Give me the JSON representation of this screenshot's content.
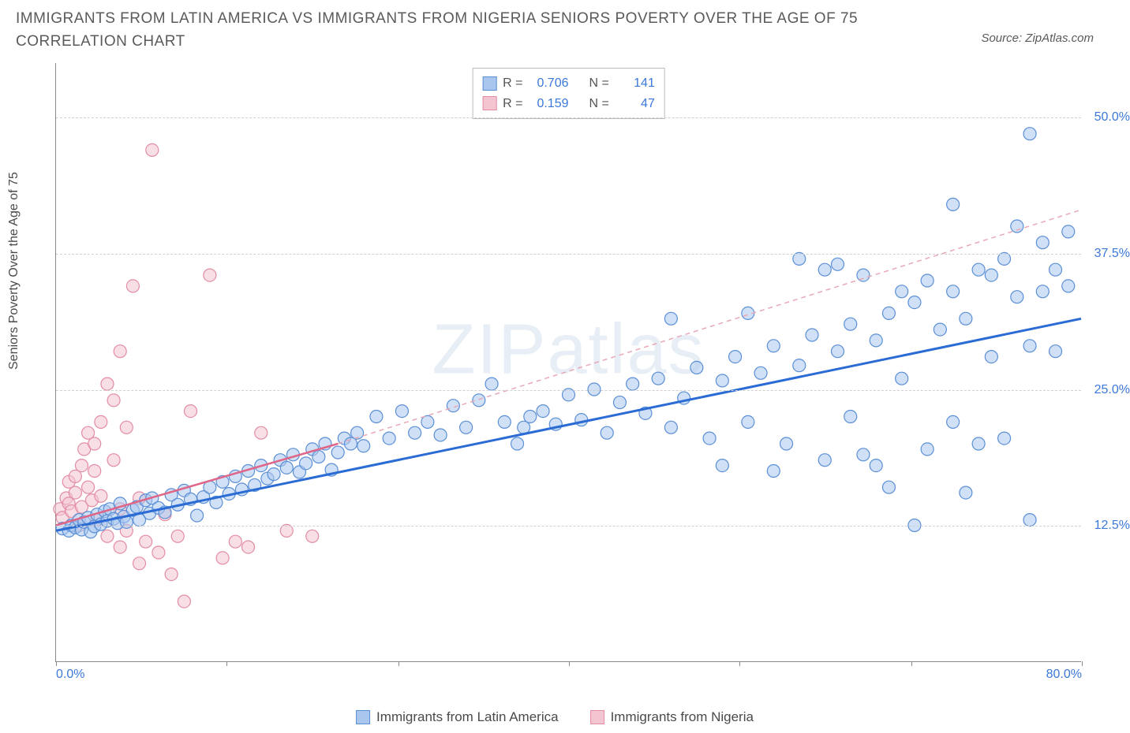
{
  "title": "IMMIGRANTS FROM LATIN AMERICA VS IMMIGRANTS FROM NIGERIA SENIORS POVERTY OVER THE AGE OF 75 CORRELATION CHART",
  "source": "Source: ZipAtlas.com",
  "watermark": "ZIPatlas",
  "y_axis_label": "Seniors Poverty Over the Age of 75",
  "chart": {
    "type": "scatter",
    "xlim": [
      0,
      80
    ],
    "ylim": [
      0,
      55
    ],
    "x_ticks": [
      0,
      13.3,
      26.7,
      40,
      53.3,
      66.7,
      80
    ],
    "x_tick_labels_shown": {
      "0": "0.0%",
      "80": "80.0%"
    },
    "y_ticks": [
      12.5,
      25.0,
      37.5,
      50.0
    ],
    "y_tick_labels": [
      "12.5%",
      "25.0%",
      "37.5%",
      "50.0%"
    ],
    "grid_color": "#d0d0d0",
    "background_color": "#ffffff",
    "axis_color": "#888888",
    "marker_radius": 8,
    "marker_opacity": 0.55,
    "marker_border_width": 1.2
  },
  "series": [
    {
      "name": "Immigrants from Latin America",
      "fill_color": "#a9c7ee",
      "stroke_color": "#5b8fd6",
      "line_color": "#2a6bd4",
      "line_width": 3,
      "line_dash": "none",
      "R": "0.706",
      "N": "141",
      "trend": {
        "x1": 0,
        "y1": 12.0,
        "x2": 80,
        "y2": 31.5
      },
      "dashed_ext": {
        "x1": 22,
        "y1": 20.0,
        "x2": 80,
        "y2": 41.5,
        "color": "#e8a8b5"
      },
      "points": [
        [
          0.5,
          12.2
        ],
        [
          1,
          12.0
        ],
        [
          1.2,
          12.5
        ],
        [
          1.5,
          12.3
        ],
        [
          1.8,
          13.0
        ],
        [
          2,
          12.1
        ],
        [
          2.2,
          12.8
        ],
        [
          2.5,
          13.2
        ],
        [
          2.7,
          11.9
        ],
        [
          3,
          12.4
        ],
        [
          3.2,
          13.5
        ],
        [
          3.5,
          12.6
        ],
        [
          3.8,
          13.8
        ],
        [
          4,
          12.9
        ],
        [
          4.2,
          14.0
        ],
        [
          4.5,
          13.1
        ],
        [
          4.8,
          12.7
        ],
        [
          5,
          14.5
        ],
        [
          5.3,
          13.3
        ],
        [
          5.5,
          12.8
        ],
        [
          6,
          13.9
        ],
        [
          6.3,
          14.2
        ],
        [
          6.5,
          13.0
        ],
        [
          7,
          14.8
        ],
        [
          7.3,
          13.6
        ],
        [
          7.5,
          15.0
        ],
        [
          8,
          14.1
        ],
        [
          8.5,
          13.7
        ],
        [
          9,
          15.3
        ],
        [
          9.5,
          14.4
        ],
        [
          10,
          15.7
        ],
        [
          10.5,
          14.9
        ],
        [
          11,
          13.4
        ],
        [
          11.5,
          15.1
        ],
        [
          12,
          16.0
        ],
        [
          12.5,
          14.6
        ],
        [
          13,
          16.5
        ],
        [
          13.5,
          15.4
        ],
        [
          14,
          17.0
        ],
        [
          14.5,
          15.8
        ],
        [
          15,
          17.5
        ],
        [
          15.5,
          16.2
        ],
        [
          16,
          18.0
        ],
        [
          16.5,
          16.8
        ],
        [
          17,
          17.2
        ],
        [
          17.5,
          18.5
        ],
        [
          18,
          17.8
        ],
        [
          18.5,
          19.0
        ],
        [
          19,
          17.4
        ],
        [
          19.5,
          18.2
        ],
        [
          20,
          19.5
        ],
        [
          20.5,
          18.8
        ],
        [
          21,
          20.0
        ],
        [
          21.5,
          17.6
        ],
        [
          22,
          19.2
        ],
        [
          22.5,
          20.5
        ],
        [
          23,
          20.0
        ],
        [
          23.5,
          21.0
        ],
        [
          24,
          19.8
        ],
        [
          25,
          22.5
        ],
        [
          26,
          20.5
        ],
        [
          27,
          23.0
        ],
        [
          28,
          21.0
        ],
        [
          29,
          22.0
        ],
        [
          30,
          20.8
        ],
        [
          31,
          23.5
        ],
        [
          32,
          21.5
        ],
        [
          33,
          24.0
        ],
        [
          34,
          25.5
        ],
        [
          35,
          22.0
        ],
        [
          36,
          20.0
        ],
        [
          36.5,
          21.5
        ],
        [
          37,
          22.5
        ],
        [
          38,
          23.0
        ],
        [
          39,
          21.8
        ],
        [
          40,
          24.5
        ],
        [
          41,
          22.2
        ],
        [
          42,
          25.0
        ],
        [
          43,
          21.0
        ],
        [
          44,
          23.8
        ],
        [
          45,
          25.5
        ],
        [
          46,
          22.8
        ],
        [
          47,
          26.0
        ],
        [
          48,
          21.5
        ],
        [
          48,
          31.5
        ],
        [
          49,
          24.2
        ],
        [
          50,
          27.0
        ],
        [
          51,
          20.5
        ],
        [
          52,
          25.8
        ],
        [
          53,
          28.0
        ],
        [
          54,
          22.0
        ],
        [
          54,
          32.0
        ],
        [
          55,
          26.5
        ],
        [
          56,
          29.0
        ],
        [
          57,
          20.0
        ],
        [
          58,
          27.2
        ],
        [
          58,
          37.0
        ],
        [
          59,
          30.0
        ],
        [
          60,
          18.5
        ],
        [
          60,
          36.0
        ],
        [
          61,
          28.5
        ],
        [
          61,
          36.5
        ],
        [
          62,
          31.0
        ],
        [
          63,
          19.0
        ],
        [
          63,
          35.5
        ],
        [
          64,
          29.5
        ],
        [
          65,
          32.0
        ],
        [
          65,
          16.0
        ],
        [
          66,
          26.0
        ],
        [
          67,
          33.0
        ],
        [
          67,
          12.5
        ],
        [
          68,
          19.5
        ],
        [
          68,
          35.0
        ],
        [
          69,
          30.5
        ],
        [
          70,
          34.0
        ],
        [
          70,
          42.0
        ],
        [
          71,
          15.5
        ],
        [
          71,
          31.5
        ],
        [
          72,
          36.0
        ],
        [
          73,
          28.0
        ],
        [
          73,
          35.5
        ],
        [
          74,
          37.0
        ],
        [
          74,
          20.5
        ],
        [
          75,
          33.5
        ],
        [
          75,
          40.0
        ],
        [
          76,
          29.0
        ],
        [
          76,
          48.5
        ],
        [
          77,
          38.5
        ],
        [
          77,
          34.0
        ],
        [
          78,
          28.5
        ],
        [
          78,
          36.0
        ],
        [
          79,
          34.5
        ],
        [
          79,
          39.5
        ],
        [
          76,
          13.0
        ],
        [
          72,
          20.0
        ],
        [
          70,
          22.0
        ],
        [
          66,
          34.0
        ],
        [
          64,
          18.0
        ],
        [
          62,
          22.5
        ],
        [
          56,
          17.5
        ],
        [
          52,
          18.0
        ]
      ]
    },
    {
      "name": "Immigrants from Nigeria",
      "fill_color": "#f3c5d1",
      "stroke_color": "#e38ca3",
      "line_color": "#e06688",
      "line_width": 2.5,
      "line_dash": "none",
      "R": "0.159",
      "N": "47",
      "trend": {
        "x1": 0,
        "y1": 12.5,
        "x2": 22,
        "y2": 20.0
      },
      "points": [
        [
          0.3,
          14.0
        ],
        [
          0.5,
          13.2
        ],
        [
          0.8,
          15.0
        ],
        [
          1,
          14.5
        ],
        [
          1,
          16.5
        ],
        [
          1.2,
          13.8
        ],
        [
          1.5,
          17.0
        ],
        [
          1.5,
          15.5
        ],
        [
          1.8,
          12.5
        ],
        [
          2,
          18.0
        ],
        [
          2,
          14.2
        ],
        [
          2.2,
          19.5
        ],
        [
          2.5,
          16.0
        ],
        [
          2.5,
          21.0
        ],
        [
          2.8,
          14.8
        ],
        [
          3,
          20.0
        ],
        [
          3,
          17.5
        ],
        [
          3.2,
          13.0
        ],
        [
          3.5,
          22.0
        ],
        [
          3.5,
          15.2
        ],
        [
          4,
          25.5
        ],
        [
          4,
          11.5
        ],
        [
          4.5,
          18.5
        ],
        [
          4.5,
          24.0
        ],
        [
          5,
          10.5
        ],
        [
          5,
          28.5
        ],
        [
          5.5,
          21.5
        ],
        [
          5.5,
          12.0
        ],
        [
          6,
          34.5
        ],
        [
          6.5,
          9.0
        ],
        [
          6.5,
          15.0
        ],
        [
          7,
          11.0
        ],
        [
          7.5,
          47.0
        ],
        [
          5,
          14.0
        ],
        [
          8,
          10.0
        ],
        [
          8.5,
          13.5
        ],
        [
          9,
          8.0
        ],
        [
          9.5,
          11.5
        ],
        [
          10,
          5.5
        ],
        [
          10.5,
          23.0
        ],
        [
          12,
          35.5
        ],
        [
          13,
          9.5
        ],
        [
          14,
          11.0
        ],
        [
          15,
          10.5
        ],
        [
          16,
          21.0
        ],
        [
          18,
          12.0
        ],
        [
          20,
          11.5
        ]
      ]
    }
  ],
  "legend_bottom": [
    {
      "label": "Immigrants from Latin America",
      "fill": "#a9c7ee",
      "stroke": "#5b8fd6"
    },
    {
      "label": "Immigrants from Nigeria",
      "fill": "#f3c5d1",
      "stroke": "#e38ca3"
    }
  ],
  "legend_top_labels": {
    "R": "R =",
    "N": "N ="
  }
}
